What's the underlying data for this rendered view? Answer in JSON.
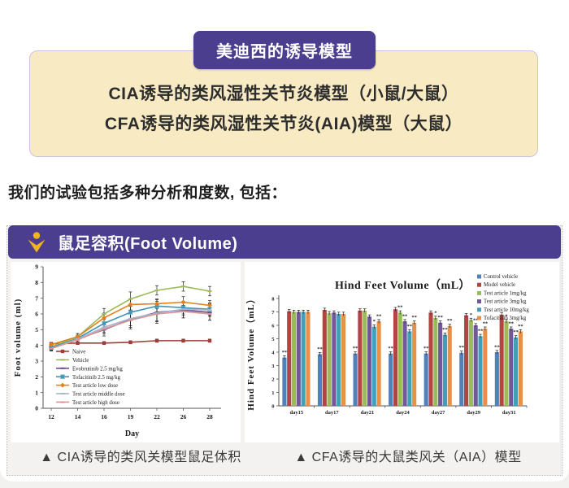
{
  "theme": {
    "accent_purple": "#4b3e8e",
    "card_bg": "#f8ebc4",
    "panel_bg": "#f3f2f0",
    "icon_yellow": "#f3b41b"
  },
  "intro_card": {
    "badge": "美迪西的诱导模型",
    "lines": [
      "CIA诱导的类风湿性关节炎模型（小鼠/大鼠）",
      "CFA诱导的类风湿性关节炎(AIA)模型（大鼠）"
    ]
  },
  "lead_text": "我们的试验包括多种分析和度数, 包括：",
  "panel": {
    "header": {
      "icon": "person-check-icon",
      "title": "鼠足容积(Foot Volume)"
    },
    "captions": [
      "▲ CIA诱导的类风关模型鼠足体积",
      "▲ CFA诱导的大鼠类风关（AIA）模型"
    ]
  },
  "chart_data": [
    {
      "type": "line",
      "title": "",
      "xlabel": "Day",
      "ylabel": "Foot volume (ml)",
      "x": [
        12,
        14,
        16,
        19,
        22,
        26,
        28
      ],
      "ylim": [
        0,
        9
      ],
      "grid": false,
      "legend_position": "inside-lower-left",
      "series": [
        {
          "name": "Naive",
          "color": "#a03d38",
          "marker": "square",
          "values": [
            4.1,
            4.15,
            4.15,
            4.2,
            4.3,
            4.3,
            4.3
          ],
          "err": [
            0.1,
            0.1,
            0.1,
            0.1,
            0.1,
            0.1,
            0.1
          ]
        },
        {
          "name": "Vehicle",
          "color": "#9bbb59",
          "marker": "dash",
          "values": [
            3.9,
            4.55,
            6.0,
            6.95,
            7.5,
            7.75,
            7.45
          ],
          "err": [
            0.15,
            0.2,
            0.35,
            0.45,
            0.3,
            0.3,
            0.3
          ]
        },
        {
          "name": "Evobrutinib 2.5 mg/kg",
          "color": "#6a4d8e",
          "marker": "dash",
          "values": [
            3.85,
            4.4,
            5.0,
            5.65,
            6.1,
            6.25,
            6.1
          ],
          "err": [
            0.15,
            0.25,
            0.4,
            0.6,
            0.7,
            0.5,
            0.5
          ]
        },
        {
          "name": "Tofacitinib 2.5 mg/kg",
          "color": "#3e95b5",
          "marker": "x",
          "values": [
            3.85,
            4.45,
            5.4,
            6.1,
            6.5,
            6.4,
            6.3
          ],
          "err": [
            0.15,
            0.2,
            0.35,
            0.4,
            0.4,
            0.4,
            0.4
          ]
        },
        {
          "name": "Test article low dose",
          "color": "#e0821e",
          "marker": "diamond",
          "values": [
            4.05,
            4.55,
            5.75,
            6.6,
            6.65,
            6.75,
            6.55
          ],
          "err": [
            0.1,
            0.2,
            0.3,
            0.35,
            0.3,
            0.35,
            0.3
          ]
        },
        {
          "name": "Test article middle dose",
          "color": "#a6b6cd",
          "marker": "dash",
          "values": [
            3.8,
            4.4,
            5.15,
            5.7,
            6.05,
            6.3,
            6.25
          ],
          "err": [
            0.15,
            0.2,
            0.3,
            0.45,
            0.5,
            0.4,
            0.4
          ]
        },
        {
          "name": "Test article high dose",
          "color": "#d99694",
          "marker": "dash",
          "values": [
            3.8,
            4.35,
            5.05,
            5.6,
            6.0,
            6.15,
            6.0
          ],
          "err": [
            0.15,
            0.2,
            0.3,
            0.45,
            0.5,
            0.4,
            0.4
          ]
        }
      ]
    },
    {
      "type": "bar",
      "title": "Hind Feet Volume（mL）",
      "xlabel": "",
      "ylabel": "Hind Feet Volume（mL）",
      "categories": [
        "day15",
        "day17",
        "day21",
        "day24",
        "day27",
        "day29",
        "day31"
      ],
      "ylim": [
        0,
        8
      ],
      "grid": false,
      "legend_position": "upper-right",
      "error_bar": 0.13,
      "series": [
        {
          "name": "Control vehicle",
          "color": "#4f81bd",
          "values": [
            3.6,
            3.85,
            3.9,
            3.9,
            3.9,
            3.95,
            4.0
          ],
          "sig": [
            "**",
            "**",
            "**",
            "**",
            "**",
            "**",
            "**"
          ]
        },
        {
          "name": "Model vehicle",
          "color": "#b04542",
          "values": [
            7.05,
            7.15,
            7.1,
            7.2,
            6.95,
            6.75,
            6.8
          ],
          "sig": [
            null,
            null,
            null,
            null,
            null,
            null,
            null
          ]
        },
        {
          "name": "Test article 1mg/kg",
          "color": "#9bbb59",
          "values": [
            7.0,
            6.9,
            7.1,
            6.95,
            6.55,
            6.4,
            6.3
          ],
          "sig": [
            null,
            null,
            null,
            "**",
            "*",
            "*",
            "*"
          ]
        },
        {
          "name": "Test article 3mg/kg",
          "color": "#71589a",
          "values": [
            7.0,
            6.95,
            6.65,
            6.3,
            6.2,
            6.0,
            5.75
          ],
          "sig": [
            null,
            null,
            null,
            "**",
            "**",
            "**",
            "**"
          ]
        },
        {
          "name": "Test article 10mg/kg",
          "color": "#3fa0b8",
          "values": [
            7.0,
            6.85,
            5.9,
            5.55,
            5.3,
            5.2,
            5.1
          ],
          "sig": [
            null,
            null,
            "*",
            "**",
            "**",
            "**",
            "**"
          ]
        },
        {
          "name": "Tofacitinib 3mg/kg",
          "color": "#e89048",
          "values": [
            7.0,
            6.85,
            6.3,
            6.2,
            5.95,
            5.75,
            5.55
          ],
          "sig": [
            null,
            null,
            "**",
            "**",
            "**",
            "**",
            "**"
          ]
        }
      ]
    }
  ]
}
